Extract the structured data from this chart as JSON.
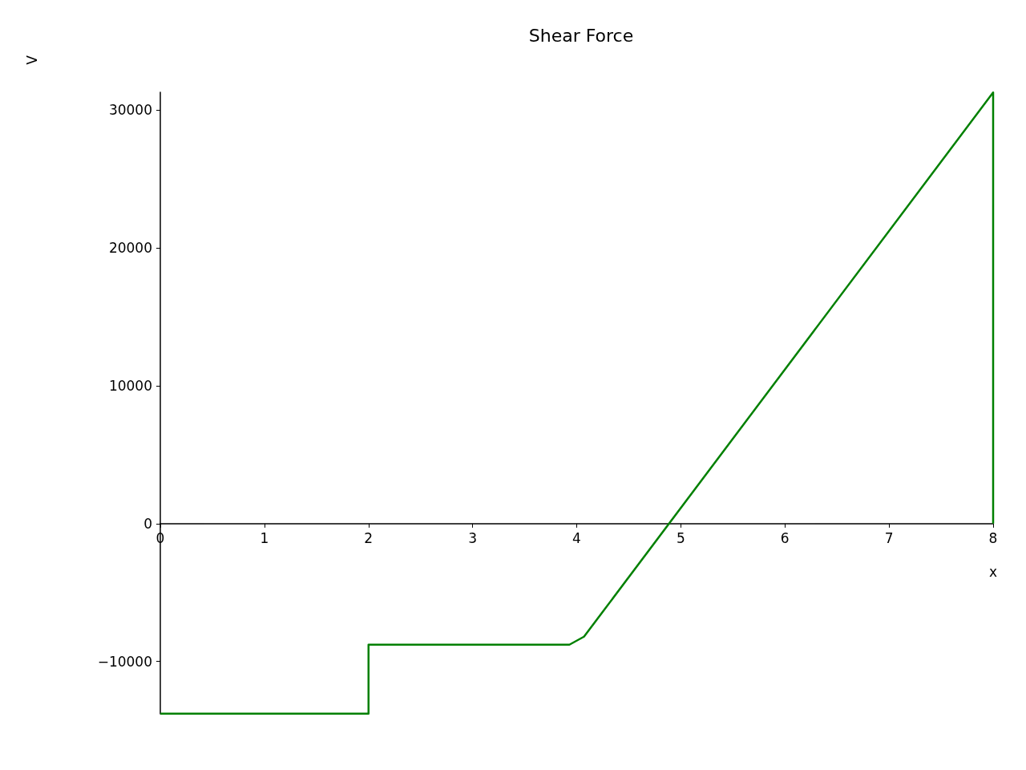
{
  "chart_data": {
    "type": "line",
    "title": "Shear Force",
    "xlabel": "x",
    "ylabel": "V",
    "series": [
      {
        "color": "#008000",
        "x": [
          0,
          2,
          2,
          3.93,
          4.07,
          8,
          8
        ],
        "values": [
          -13780,
          -13780,
          -8780,
          -8780,
          -8200,
          31280,
          0
        ]
      }
    ],
    "xlim": [
      0,
      8
    ],
    "xticks": [
      0,
      1,
      2,
      3,
      4,
      5,
      6,
      7,
      8
    ],
    "ylim": [
      -13800,
      31300
    ],
    "yticks": [
      -10000,
      0,
      10000,
      20000,
      30000
    ],
    "marker": "none",
    "line_style": "solid"
  }
}
